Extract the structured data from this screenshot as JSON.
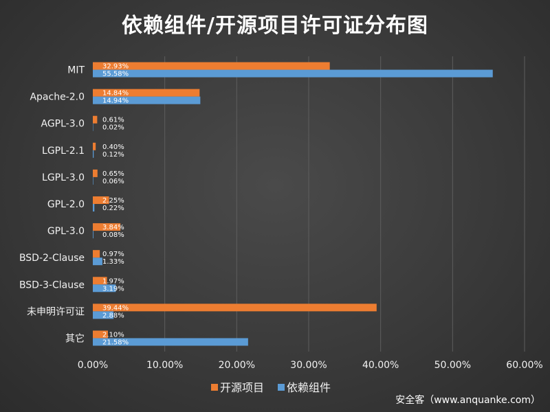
{
  "colors": {
    "series_1": "#ed7d31",
    "series_2": "#5b9bd5",
    "grid": "#5e5e5e"
  },
  "chart_data": {
    "type": "bar",
    "orientation": "horizontal",
    "title": "依赖组件/开源项目许可证分布图",
    "categories": [
      "MIT",
      "Apache-2.0",
      "AGPL-3.0",
      "LGPL-2.1",
      "LGPL-3.0",
      "GPL-2.0",
      "GPL-3.0",
      "BSD-2-Clause",
      "BSD-3-Clause",
      "未申明许可证",
      "其它"
    ],
    "series": [
      {
        "name": "开源项目",
        "values": [
          32.93,
          14.84,
          0.61,
          0.4,
          0.65,
          2.25,
          3.84,
          0.97,
          1.97,
          39.44,
          2.1
        ],
        "labels": [
          "32.93%",
          "14.84%",
          "0.61%",
          "0.40%",
          "0.65%",
          "2.25%",
          "3.84%",
          "0.97%",
          "1.97%",
          "39.44%",
          "2.10%"
        ]
      },
      {
        "name": "依赖组件",
        "values": [
          55.58,
          14.94,
          0.02,
          0.12,
          0.06,
          0.22,
          0.08,
          1.33,
          3.19,
          2.88,
          21.58
        ],
        "labels": [
          "55.58%",
          "14.94%",
          "0.02%",
          "0.12%",
          "0.06%",
          "0.22%",
          "0.08%",
          "1.33%",
          "3.19%",
          "2.88%",
          "21.58%"
        ]
      }
    ],
    "xlim": [
      0,
      60
    ],
    "x_ticks": [
      0,
      10,
      20,
      30,
      40,
      50,
      60
    ],
    "x_tick_labels": [
      "0.00%",
      "10.00%",
      "20.00%",
      "30.00%",
      "40.00%",
      "50.00%",
      "60.00%"
    ],
    "grid": true,
    "legend_position": "bottom"
  },
  "footer": "安全客（www.anquanke.com）"
}
